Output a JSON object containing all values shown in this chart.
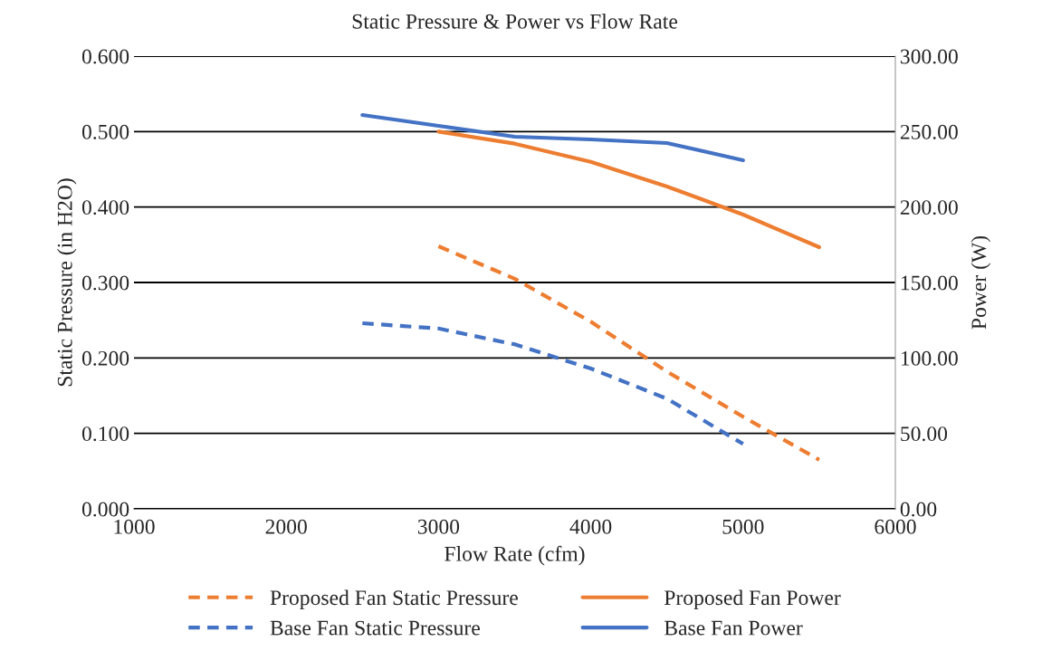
{
  "chart_data": {
    "type": "line",
    "title": "Static Pressure & Power vs Flow Rate",
    "xlabel": "Flow Rate (cfm)",
    "ylabel": "Static Pressure (in H2O)",
    "y2label": "Power (W)",
    "xlim": [
      1000,
      6000
    ],
    "xticks": [
      1000,
      2000,
      3000,
      4000,
      5000,
      6000
    ],
    "ylim": [
      0,
      0.6
    ],
    "yticks": [
      {
        "value": 0,
        "label": "0.000"
      },
      {
        "value": 0.1,
        "label": "0.100"
      },
      {
        "value": 0.2,
        "label": "0.200"
      },
      {
        "value": 0.3,
        "label": "0.300"
      },
      {
        "value": 0.4,
        "label": "0.400"
      },
      {
        "value": 0.5,
        "label": "0.500"
      },
      {
        "value": 0.6,
        "label": "0.600"
      }
    ],
    "y2lim": [
      0,
      300
    ],
    "y2ticks": [
      {
        "value": 0,
        "label": "0.00"
      },
      {
        "value": 50,
        "label": "50.00"
      },
      {
        "value": 100,
        "label": "100.00"
      },
      {
        "value": 150,
        "label": "150.00"
      },
      {
        "value": 200,
        "label": "200.00"
      },
      {
        "value": 250,
        "label": "250.00"
      },
      {
        "value": 300,
        "label": "300.00"
      }
    ],
    "grid": "y",
    "legend": "bottom",
    "marker": "none",
    "series": [
      {
        "name": "Proposed Fan Static Pressure",
        "color": "#ed7d31",
        "line_style": "dashed",
        "x": [
          3000,
          3500,
          4000,
          4500,
          5000,
          5500
        ],
        "values": [
          0.348,
          0.305,
          0.248,
          0.182,
          0.122,
          0.065
        ]
      },
      {
        "name": "Base Fan Static Pressure",
        "color": "#4472c4",
        "line_style": "dashed",
        "x": [
          2500,
          3000,
          3500,
          4000,
          4500,
          5000
        ],
        "values": [
          0.246,
          0.239,
          0.218,
          0.186,
          0.146,
          0.086
        ]
      },
      {
        "name": "Proposed Fan Power",
        "color": "#ed7d31",
        "line_style": "solid",
        "axis": "y2",
        "x": [
          3000,
          3500,
          4000,
          4500,
          5000,
          5500
        ],
        "values": [
          250,
          242,
          230,
          213.6,
          195,
          173.4
        ]
      },
      {
        "name": "Base Fan Power",
        "color": "#4472c4",
        "line_style": "solid",
        "axis": "y2",
        "x": [
          2500,
          3000,
          3500,
          4000,
          4500,
          5000
        ],
        "values": [
          261,
          253.8,
          246.6,
          244.8,
          242.4,
          231
        ]
      }
    ]
  }
}
